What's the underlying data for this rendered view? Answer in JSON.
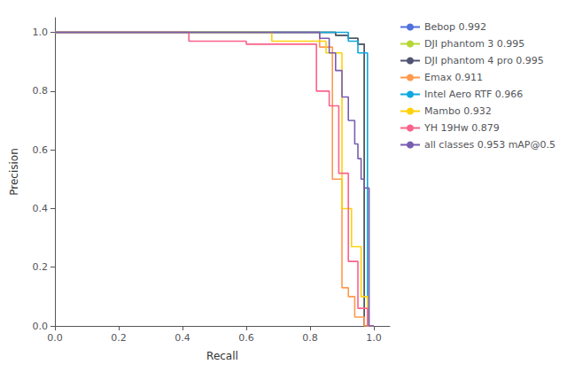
{
  "chart_data": {
    "type": "line",
    "xlabel": "Recall",
    "ylabel": "Precision",
    "xlim": [
      0.0,
      1.05
    ],
    "ylim": [
      0.0,
      1.05
    ],
    "xticks": [
      {
        "value": 0.0,
        "label": "0.0"
      },
      0.2,
      0.4,
      0.6,
      0.8,
      {
        "value": 1.0,
        "label": "1.0"
      }
    ],
    "yticks": [
      {
        "value": 0.0,
        "label": "0.0"
      },
      0.2,
      0.4,
      0.6,
      0.8,
      {
        "value": 1.0,
        "label": "1.0"
      }
    ],
    "grid": false,
    "legend": "upper right",
    "series": [
      {
        "name": "Bebop 0.992",
        "x": [
          0.0,
          0.88,
          0.88,
          0.92,
          0.92,
          0.95,
          0.95,
          0.97,
          0.97,
          1.0
        ],
        "values": [
          1.0,
          1.0,
          0.99,
          0.99,
          0.98,
          0.98,
          0.96,
          0.96,
          0.0,
          0.0
        ]
      },
      {
        "name": "DJI phantom 3 0.995",
        "x": [
          0.0,
          0.88,
          0.88,
          0.92,
          0.92,
          0.95,
          0.95,
          0.97,
          0.97,
          1.0
        ],
        "values": [
          1.0,
          1.0,
          0.99,
          0.99,
          0.98,
          0.98,
          0.96,
          0.96,
          0.0,
          0.0
        ]
      },
      {
        "name": "DJI phantom 4 pro 0.995",
        "x": [
          0.0,
          0.88,
          0.88,
          0.92,
          0.92,
          0.95,
          0.95,
          0.97,
          0.97,
          1.0
        ],
        "values": [
          1.0,
          1.0,
          0.99,
          0.99,
          0.98,
          0.98,
          0.96,
          0.96,
          0.0,
          0.0
        ]
      },
      {
        "name": "Emax 0.911",
        "x": [
          0.0,
          0.83,
          0.83,
          0.87,
          0.87,
          0.9,
          0.9,
          0.92,
          0.92,
          0.94,
          0.94,
          0.97,
          0.97,
          1.0
        ],
        "values": [
          1.0,
          1.0,
          0.95,
          0.95,
          0.5,
          0.5,
          0.13,
          0.13,
          0.1,
          0.1,
          0.03,
          0.03,
          0.0,
          0.0
        ]
      },
      {
        "name": "Intel Aero RTF 0.966",
        "x": [
          0.0,
          0.92,
          0.92,
          0.95,
          0.95,
          0.98,
          0.98,
          1.0
        ],
        "values": [
          1.0,
          1.0,
          0.97,
          0.97,
          0.93,
          0.93,
          0.0,
          0.0
        ]
      },
      {
        "name": "Mambo 0.932",
        "x": [
          0.0,
          0.68,
          0.68,
          0.85,
          0.85,
          0.9,
          0.9,
          0.93,
          0.93,
          0.96,
          0.96,
          0.98,
          0.98,
          1.0
        ],
        "values": [
          1.0,
          1.0,
          0.97,
          0.97,
          0.93,
          0.93,
          0.4,
          0.4,
          0.27,
          0.27,
          0.1,
          0.1,
          0.0,
          0.0
        ]
      },
      {
        "name": "YH 19Hw 0.879",
        "x": [
          0.0,
          0.42,
          0.42,
          0.6,
          0.6,
          0.82,
          0.82,
          0.86,
          0.86,
          0.89,
          0.89,
          0.92,
          0.92,
          0.95,
          0.95,
          0.98,
          0.98,
          1.0
        ],
        "values": [
          1.0,
          1.0,
          0.97,
          0.97,
          0.96,
          0.96,
          0.8,
          0.8,
          0.75,
          0.75,
          0.52,
          0.52,
          0.22,
          0.22,
          0.06,
          0.06,
          0.0,
          0.0
        ]
      },
      {
        "name": "all classes 0.953 mAP@0.5",
        "x": [
          0.0,
          0.83,
          0.83,
          0.86,
          0.86,
          0.88,
          0.88,
          0.9,
          0.9,
          0.92,
          0.92,
          0.94,
          0.94,
          0.95,
          0.95,
          0.96,
          0.96,
          0.97,
          0.97,
          0.985,
          0.985,
          1.0
        ],
        "values": [
          1.0,
          1.0,
          0.98,
          0.98,
          0.93,
          0.93,
          0.87,
          0.87,
          0.78,
          0.78,
          0.7,
          0.7,
          0.62,
          0.62,
          0.57,
          0.57,
          0.5,
          0.5,
          0.47,
          0.47,
          0.0,
          0.0
        ]
      }
    ]
  }
}
